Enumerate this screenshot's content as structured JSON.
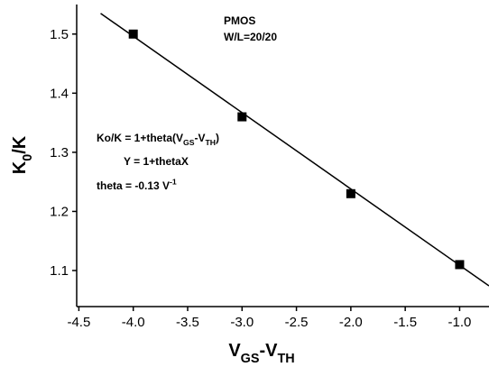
{
  "chart_data": {
    "type": "scatter",
    "xlabel": [
      {
        "text": "V"
      },
      {
        "text": "GS",
        "script": "sub"
      },
      {
        "text": "-V"
      },
      {
        "text": "TH",
        "script": "sub"
      }
    ],
    "ylabel": [
      {
        "text": "K"
      },
      {
        "text": "0",
        "script": "sub"
      },
      {
        "text": "/K"
      }
    ],
    "annotations": [
      [
        {
          "text": "PMOS"
        }
      ],
      [
        {
          "text": "W/L=20/20"
        }
      ],
      [
        {
          "text": "Ko/K = 1+theta(V"
        },
        {
          "text": "GS",
          "script": "sub"
        },
        {
          "text": "-V"
        },
        {
          "text": "TH",
          "script": "sub"
        },
        {
          "text": ")"
        }
      ],
      [
        {
          "text": "Y  = 1+thetaX"
        }
      ],
      [
        {
          "text": "theta = -0.13 V"
        },
        {
          "text": "-1",
          "script": "super"
        }
      ]
    ],
    "series": [
      {
        "kind": "points",
        "color": "#000000",
        "x": [
          -4.0,
          -3.0,
          -2.0,
          -1.0
        ],
        "values": [
          1.5,
          1.36,
          1.23,
          1.11
        ]
      },
      {
        "kind": "line",
        "color": "#000000",
        "x": [
          -4.3,
          -0.73
        ],
        "values": [
          1.535,
          1.074
        ]
      }
    ],
    "xlim": [
      -4.52,
      -0.73
    ],
    "ylim": [
      1.039,
      1.55
    ],
    "xticks": [
      -4.5,
      {
        "value": -4.0,
        "label": "-4.0"
      },
      -3.5,
      {
        "value": -3.0,
        "label": "-3.0"
      },
      -2.5,
      {
        "value": -2.0,
        "label": "-2.0"
      },
      -1.5,
      {
        "value": -1.0,
        "label": "-1.0"
      }
    ],
    "yticks": [
      1.1,
      1.2,
      1.3,
      1.4,
      1.5
    ],
    "grid": false
  }
}
